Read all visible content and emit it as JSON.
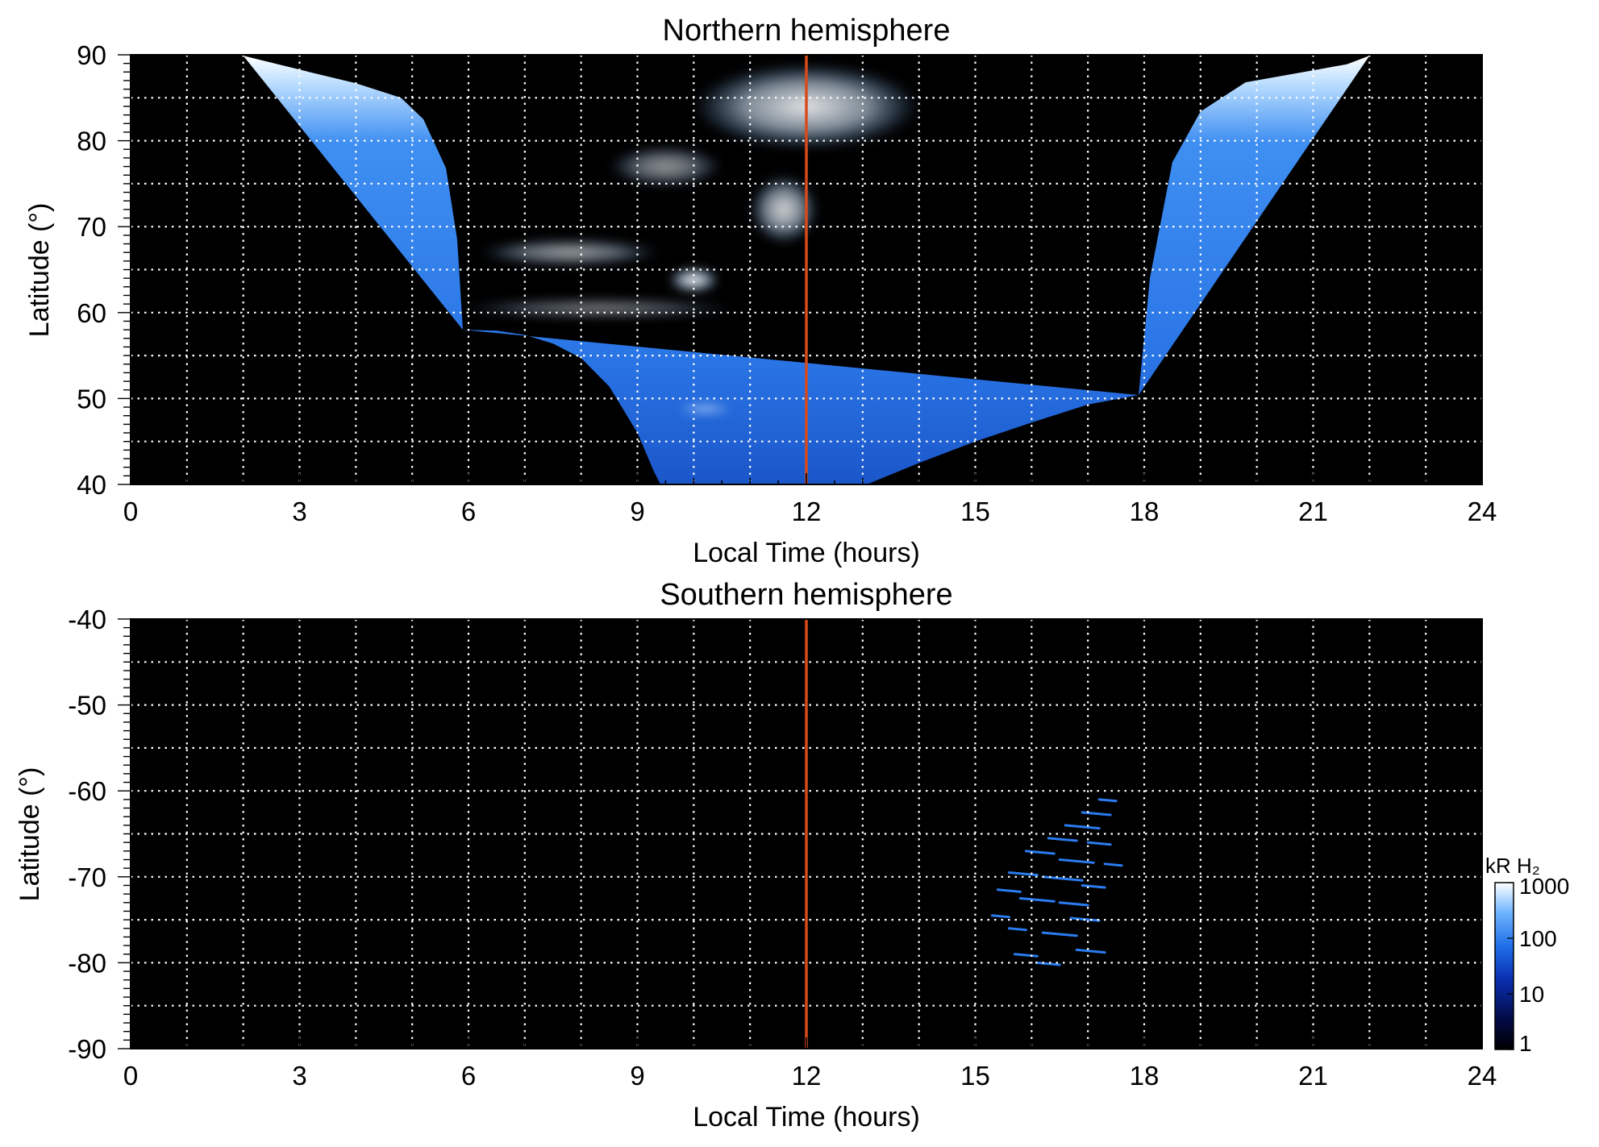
{
  "chart_data": [
    {
      "type": "heatmap",
      "title": "Northern hemisphere",
      "xlabel": "Local Time (hours)",
      "ylabel": "Latitude (°)",
      "xlim": [
        0,
        24
      ],
      "ylim": [
        40,
        90
      ],
      "x_ticks": [
        "0",
        "3",
        "6",
        "9",
        "12",
        "15",
        "18",
        "21",
        "24"
      ],
      "y_ticks": [
        "40",
        "50",
        "60",
        "70",
        "80",
        "90"
      ],
      "x_tick_values": [
        0,
        3,
        6,
        9,
        12,
        15,
        18,
        21,
        24
      ],
      "y_tick_values": [
        40,
        50,
        60,
        70,
        80,
        90
      ],
      "grid": true,
      "background_color": "#000000",
      "reference_line": {
        "x": 12,
        "color": "#d84a1b"
      },
      "coverage_lower_boundary": [
        [
          5.9,
          58.0
        ],
        [
          6.5,
          57.9
        ],
        [
          7.0,
          57.4
        ],
        [
          7.5,
          56.4
        ],
        [
          8.0,
          54.7
        ],
        [
          8.5,
          51.4
        ],
        [
          9.0,
          46.0
        ],
        [
          9.3,
          41.4
        ],
        [
          9.45,
          39.5
        ],
        [
          13.0,
          39.8
        ],
        [
          14.0,
          42.5
        ],
        [
          15.0,
          45.0
        ],
        [
          16.0,
          47.2
        ],
        [
          17.0,
          49.3
        ],
        [
          17.9,
          50.4
        ]
      ],
      "coverage_upper_boundary": [
        [
          2.0,
          89.9
        ],
        [
          2.8,
          88.6
        ],
        [
          3.3,
          87.8
        ],
        [
          4.0,
          86.7
        ],
        [
          4.8,
          85.0
        ],
        [
          5.2,
          82.5
        ],
        [
          5.6,
          76.8
        ],
        [
          5.8,
          68.5
        ],
        [
          5.9,
          58.0
        ],
        [
          17.9,
          50.4
        ],
        [
          18.1,
          64.0
        ],
        [
          18.5,
          77.5
        ],
        [
          19.0,
          83.4
        ],
        [
          19.8,
          86.8
        ],
        [
          21.0,
          88.2
        ],
        [
          21.6,
          88.9
        ],
        [
          22.0,
          89.9
        ]
      ],
      "bright_features": [
        {
          "x": 12.0,
          "y": 84.0,
          "rx": 2.0,
          "ry": 5.0,
          "intensity": 0.9
        },
        {
          "x": 11.6,
          "y": 72.0,
          "rx": 0.6,
          "ry": 4.0,
          "intensity": 0.85
        },
        {
          "x": 10.0,
          "y": 63.8,
          "rx": 0.45,
          "ry": 1.5,
          "intensity": 1.0
        },
        {
          "x": 7.8,
          "y": 67.0,
          "rx": 1.6,
          "ry": 1.6,
          "intensity": 0.65
        },
        {
          "x": 9.5,
          "y": 77.0,
          "rx": 1.0,
          "ry": 2.4,
          "intensity": 0.6
        },
        {
          "x": 8.3,
          "y": 60.5,
          "rx": 2.4,
          "ry": 1.2,
          "intensity": 0.5
        },
        {
          "x": 10.2,
          "y": 48.8,
          "rx": 0.5,
          "ry": 0.6,
          "intensity": 0.7
        }
      ]
    },
    {
      "type": "heatmap",
      "title": "Southern hemisphere",
      "xlabel": "Local Time (hours)",
      "ylabel": "Latitude (°)",
      "xlim": [
        0,
        24
      ],
      "ylim": [
        -90,
        -40
      ],
      "x_ticks": [
        "0",
        "3",
        "6",
        "9",
        "12",
        "15",
        "18",
        "21",
        "24"
      ],
      "y_ticks": [
        "-40",
        "-50",
        "-60",
        "-70",
        "-80",
        "-90"
      ],
      "x_tick_values": [
        0,
        3,
        6,
        9,
        12,
        15,
        18,
        21,
        24
      ],
      "y_tick_values": [
        -40,
        -50,
        -60,
        -70,
        -80,
        -90
      ],
      "grid": true,
      "background_color": "#000000",
      "reference_line": {
        "x": 12,
        "color": "#d84a1b"
      },
      "emission_streaks": [
        {
          "x": 17.2,
          "y": -61.0,
          "len": 0.3
        },
        {
          "x": 16.9,
          "y": -62.5,
          "len": 0.5
        },
        {
          "x": 16.6,
          "y": -64.0,
          "len": 0.6
        },
        {
          "x": 16.3,
          "y": -65.5,
          "len": 0.5
        },
        {
          "x": 17.0,
          "y": -66.0,
          "len": 0.4
        },
        {
          "x": 15.9,
          "y": -67.0,
          "len": 0.5
        },
        {
          "x": 16.5,
          "y": -68.0,
          "len": 0.6
        },
        {
          "x": 17.3,
          "y": -68.5,
          "len": 0.3
        },
        {
          "x": 15.6,
          "y": -69.5,
          "len": 0.5
        },
        {
          "x": 16.2,
          "y": -70.0,
          "len": 0.7
        },
        {
          "x": 16.9,
          "y": -71.0,
          "len": 0.4
        },
        {
          "x": 15.4,
          "y": -71.5,
          "len": 0.4
        },
        {
          "x": 15.8,
          "y": -72.5,
          "len": 0.6
        },
        {
          "x": 16.5,
          "y": -73.0,
          "len": 0.5
        },
        {
          "x": 15.3,
          "y": -74.5,
          "len": 0.3
        },
        {
          "x": 16.7,
          "y": -74.8,
          "len": 0.5
        },
        {
          "x": 15.6,
          "y": -76.0,
          "len": 0.3
        },
        {
          "x": 16.2,
          "y": -76.5,
          "len": 0.6
        },
        {
          "x": 16.8,
          "y": -78.5,
          "len": 0.5
        },
        {
          "x": 15.7,
          "y": -79.0,
          "len": 0.4
        },
        {
          "x": 16.1,
          "y": -80.0,
          "len": 0.4
        }
      ]
    }
  ],
  "colorbar": {
    "title": "kR H₂",
    "ticks": [
      "1000",
      "100",
      "10",
      "1"
    ],
    "tick_values": [
      1000,
      100,
      10,
      1
    ],
    "scale": "log",
    "range": [
      1,
      1000
    ],
    "colors": [
      "#000000",
      "#020a45",
      "#0a2fb0",
      "#1f6fe8",
      "#6fb4ff",
      "#ffffff"
    ]
  }
}
